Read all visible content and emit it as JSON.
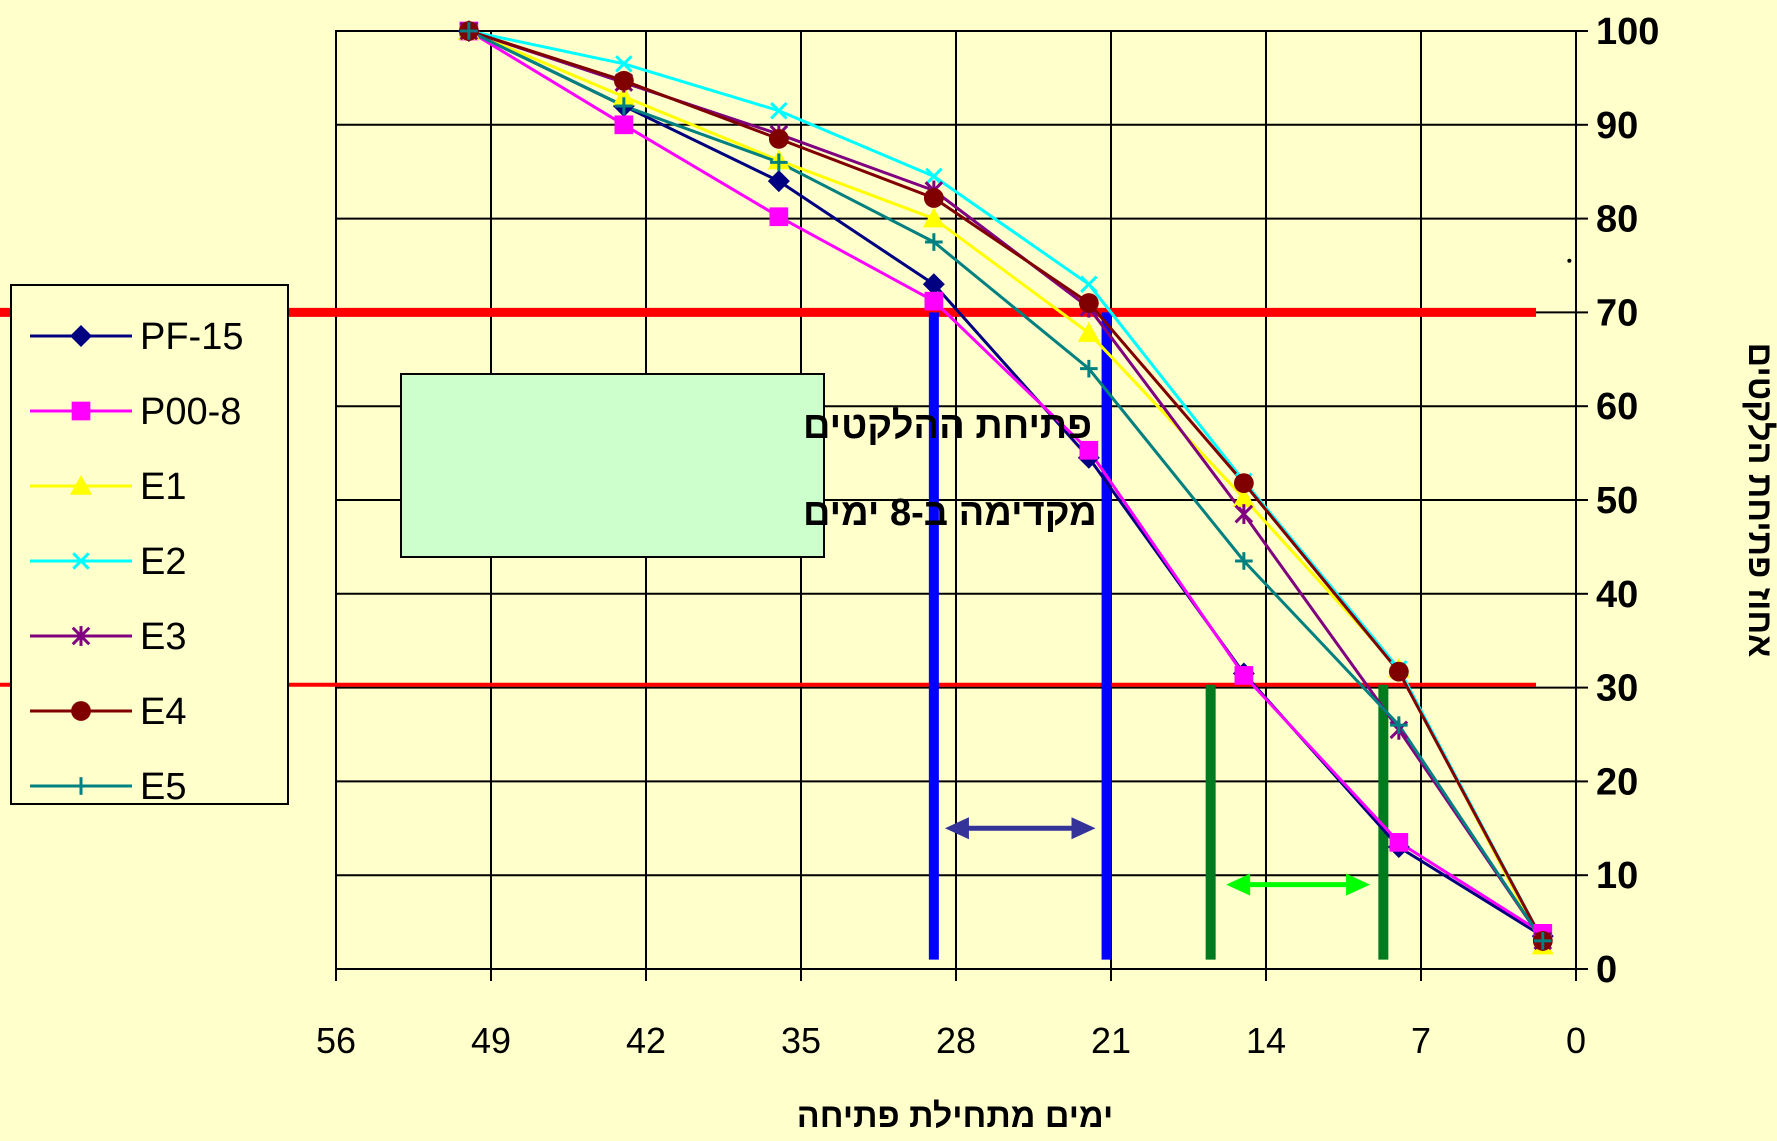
{
  "chart_data": {
    "type": "line",
    "title": "",
    "xlabel": "ימים מתחילת פתיחה",
    "ylabel": "אחוז פתיחת הלקטים",
    "xlim": [
      56,
      0
    ],
    "ylim": [
      0,
      100
    ],
    "x_reversed": true,
    "y_axis_position": "right",
    "x_ticks": [
      "56",
      "49",
      "42",
      "35",
      "28",
      "21",
      "14",
      "7",
      "0"
    ],
    "x_tick_values": [
      56,
      49,
      42,
      35,
      28,
      21,
      14,
      7,
      0
    ],
    "y_ticks": [
      "0",
      "10",
      "20",
      "30",
      "40",
      "50",
      "60",
      "70",
      "80",
      "90",
      "100"
    ],
    "y_tick_values": [
      0,
      10,
      20,
      30,
      40,
      50,
      60,
      70,
      80,
      90,
      100
    ],
    "grid": true,
    "legend_position": "left",
    "series": [
      {
        "name": "PF-15",
        "color": "#000080",
        "marker": "diamond",
        "x": [
          50,
          43,
          36,
          29,
          22,
          15,
          8,
          1.5
        ],
        "y": [
          100,
          92,
          84,
          73,
          54.5,
          31.5,
          13,
          3.5
        ]
      },
      {
        "name": "P00-8",
        "color": "#FF00FF",
        "marker": "square",
        "x": [
          50,
          43,
          36,
          29,
          22,
          15,
          8,
          1.5
        ],
        "y": [
          100,
          90,
          80.2,
          71.2,
          55.3,
          31.3,
          13.5,
          3.8
        ]
      },
      {
        "name": "E1",
        "color": "#FFFF00",
        "marker": "triangle",
        "x": [
          50,
          43,
          36,
          29,
          22,
          15,
          8,
          1.5
        ],
        "y": [
          100,
          93,
          86.2,
          80,
          67.8,
          50.2,
          32,
          2.5
        ]
      },
      {
        "name": "E2",
        "color": "#00FFFF",
        "marker": "x",
        "x": [
          50,
          43,
          36,
          29,
          22,
          15,
          8,
          1.5
        ],
        "y": [
          100,
          96.5,
          91.5,
          84.5,
          73,
          52,
          32,
          3
        ]
      },
      {
        "name": "E3",
        "color": "#800080",
        "marker": "star",
        "x": [
          50,
          43,
          36,
          29,
          22,
          15,
          8,
          1.5
        ],
        "y": [
          100,
          94.5,
          89,
          83,
          70.5,
          48.5,
          25.5,
          3
        ]
      },
      {
        "name": "E4",
        "color": "#800000",
        "marker": "circle",
        "x": [
          50,
          43,
          36,
          29,
          22,
          15,
          8,
          1.5
        ],
        "y": [
          100,
          94.7,
          88.5,
          82.2,
          71,
          51.8,
          31.7,
          3
        ]
      },
      {
        "name": "E5",
        "color": "#008080",
        "marker": "plus",
        "x": [
          50,
          43,
          36,
          29,
          22,
          15,
          8,
          1.5
        ],
        "y": [
          100,
          92,
          86,
          77.5,
          64,
          43.5,
          26,
          3
        ]
      }
    ],
    "annotations": {
      "box_lines": [
        "פתיחת ההלקטים",
        "מקדימה ב-8 ימים"
      ],
      "hlines": [
        {
          "y": 70,
          "color": "#FF0000",
          "width": "thick"
        },
        {
          "y": 30.3,
          "color": "#FF0000",
          "width": "thin"
        }
      ],
      "vlines": [
        {
          "x": 29,
          "y_from": 1,
          "y_to": 70,
          "color": "#0000FF"
        },
        {
          "x": 21.2,
          "y_from": 1,
          "y_to": 70,
          "color": "#0000FF"
        },
        {
          "x": 16.5,
          "y_from": 1,
          "y_to": 30.3,
          "color": "#007A1F"
        },
        {
          "x": 8.7,
          "y_from": 1,
          "y_to": 30.3,
          "color": "#007A1F"
        }
      ],
      "arrows": [
        {
          "x_from": 28.5,
          "x_to": 21.7,
          "y": 15,
          "color": "#333399"
        },
        {
          "x_from": 15.8,
          "x_to": 9.3,
          "y": 9,
          "color": "#00FF00"
        }
      ],
      "stray_dots": [
        {
          "x": 0.3,
          "y": 75.5
        }
      ]
    }
  }
}
